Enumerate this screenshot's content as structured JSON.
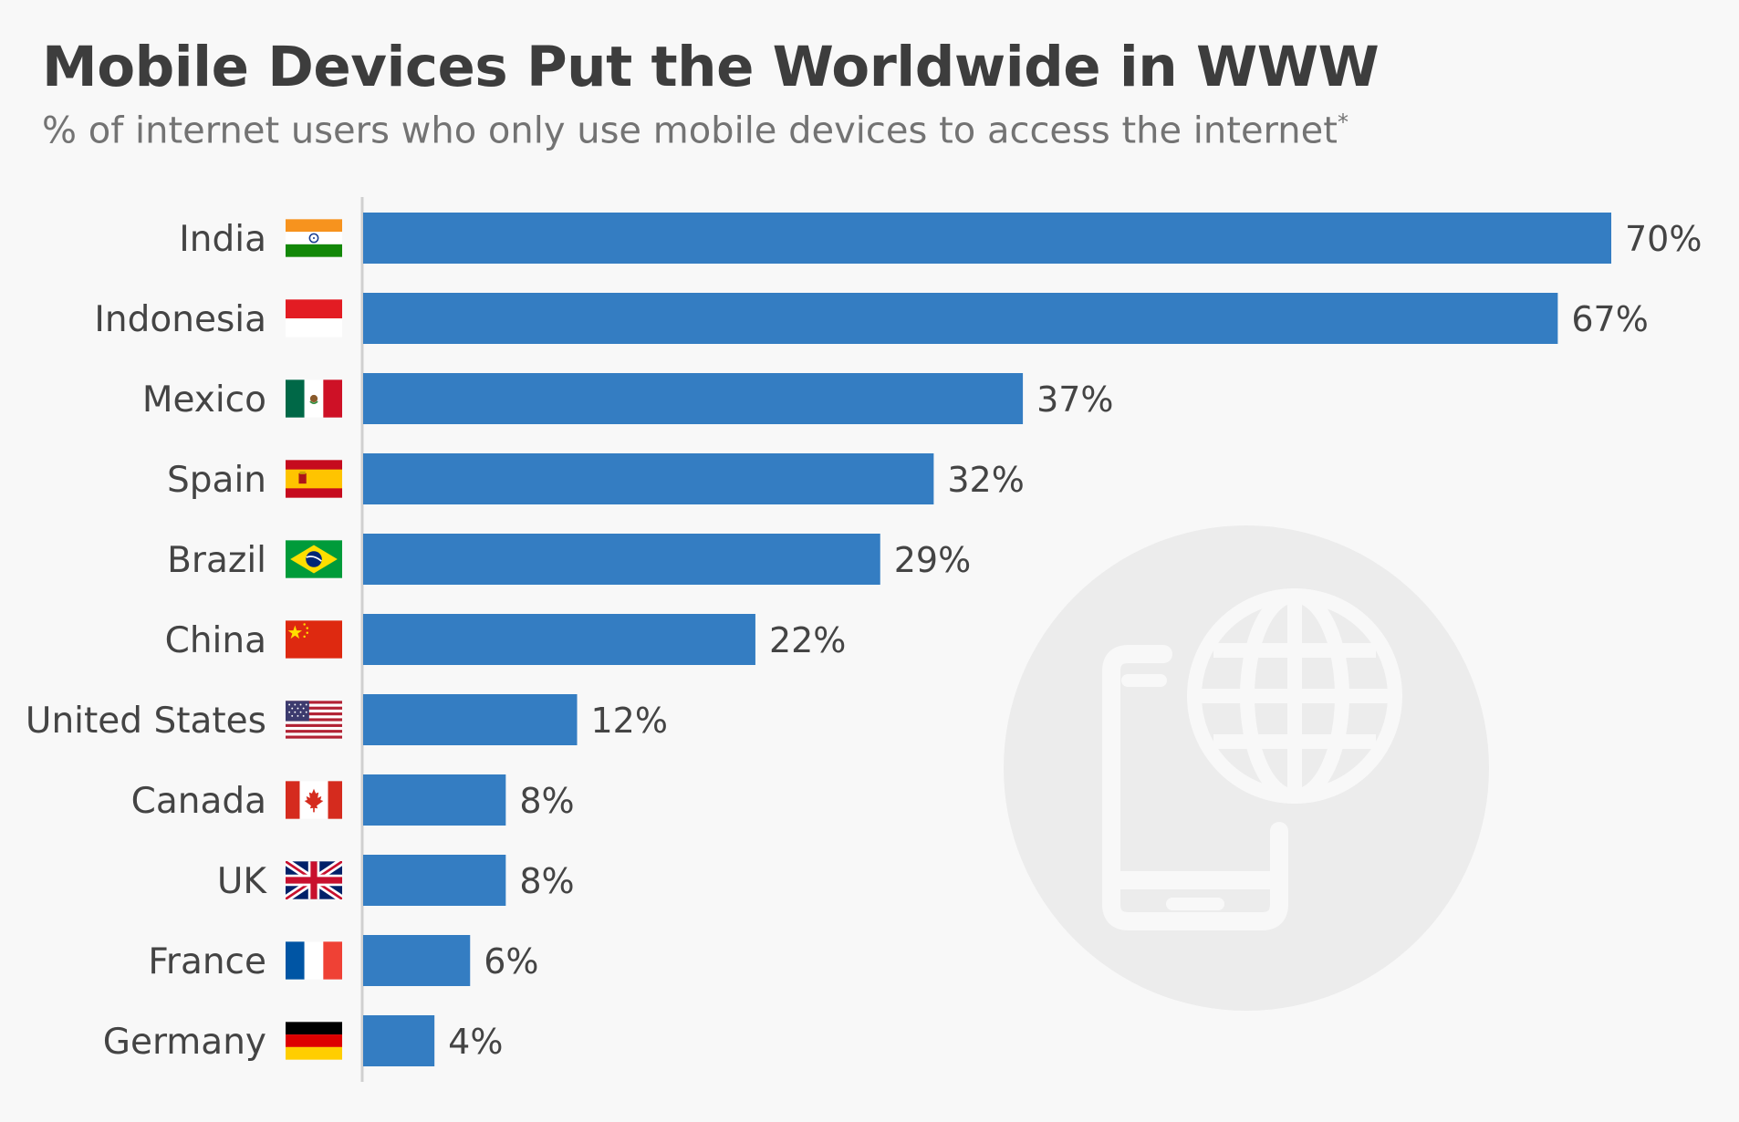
{
  "colors": {
    "bar": "#347dc2",
    "background": "#f8f8f8",
    "watermark_circle": "#ececec",
    "watermark_icon": "#f8f8f8",
    "axis_line": "#cfcfcf"
  },
  "header": {
    "title": "Mobile Devices Put the Worldwide in WWW",
    "subtitle": "% of internet users who only use mobile devices to access the internet",
    "subtitle_note_mark": "*"
  },
  "chart_data": {
    "type": "bar",
    "orientation": "horizontal",
    "title": "Mobile Devices Put the Worldwide in WWW",
    "subtitle": "% of internet users who only use mobile devices to access the internet*",
    "xlabel": "",
    "ylabel": "",
    "unit": "%",
    "xlim": [
      0,
      70
    ],
    "grid": false,
    "legend": "none",
    "categories": [
      "India",
      "Indonesia",
      "Mexico",
      "Spain",
      "Brazil",
      "China",
      "United States",
      "Canada",
      "UK",
      "France",
      "Germany"
    ],
    "values": [
      70,
      67,
      37,
      32,
      29,
      22,
      12,
      8,
      8,
      6,
      4
    ],
    "value_labels": [
      "70%",
      "67%",
      "37%",
      "32%",
      "29%",
      "22%",
      "12%",
      "8%",
      "8%",
      "6%",
      "4%"
    ],
    "flags": [
      "india-flag",
      "indonesia-flag",
      "mexico-flag",
      "spain-flag",
      "brazil-flag",
      "china-flag",
      "united-states-flag",
      "canada-flag",
      "uk-flag",
      "france-flag",
      "germany-flag"
    ]
  },
  "watermark": {
    "icons": [
      "smartphone-icon",
      "globe-icon"
    ]
  }
}
